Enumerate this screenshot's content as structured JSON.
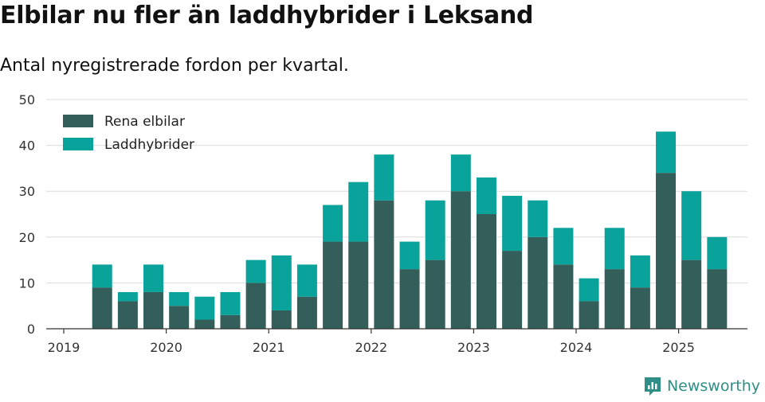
{
  "title": "Elbilar nu fler än laddhybrider i Leksand",
  "subtitle": "Antal nyregistrerade fordon per kvartal.",
  "brand": "Newsworthy",
  "colors": {
    "rena_elbilar": "#335e5a",
    "laddhybrider": "#0aa39b",
    "brand": "#2f8f86"
  },
  "chart_data": {
    "type": "bar",
    "stacked": true,
    "x_ticks": [
      "2019",
      "2020",
      "2021",
      "2022",
      "2023",
      "2024",
      "2025"
    ],
    "y_ticks": [
      "0",
      "10",
      "20",
      "30",
      "40",
      "50"
    ],
    "ylim": [
      0,
      50
    ],
    "grid": true,
    "legend_position": "top-left",
    "categories": [
      "2019 Q2",
      "2019 Q3",
      "2019 Q4",
      "2020 Q1",
      "2020 Q2",
      "2020 Q3",
      "2020 Q4",
      "2021 Q1",
      "2021 Q2",
      "2021 Q3",
      "2021 Q4",
      "2022 Q1",
      "2022 Q2",
      "2022 Q3",
      "2022 Q4",
      "2023 Q1",
      "2023 Q2",
      "2023 Q3",
      "2023 Q4",
      "2024 Q1",
      "2024 Q2",
      "2024 Q3",
      "2024 Q4",
      "2025 Q1",
      "2025 Q2"
    ],
    "series": [
      {
        "name": "Rena elbilar",
        "values": [
          9,
          6,
          8,
          5,
          2,
          3,
          10,
          4,
          7,
          19,
          19,
          28,
          13,
          15,
          30,
          25,
          17,
          20,
          14,
          6,
          13,
          9,
          34,
          15,
          13
        ]
      },
      {
        "name": "Laddhybrider",
        "values": [
          5,
          2,
          6,
          3,
          5,
          5,
          5,
          12,
          7,
          8,
          13,
          10,
          6,
          13,
          8,
          8,
          12,
          8,
          8,
          5,
          9,
          7,
          9,
          15,
          7
        ]
      }
    ]
  }
}
